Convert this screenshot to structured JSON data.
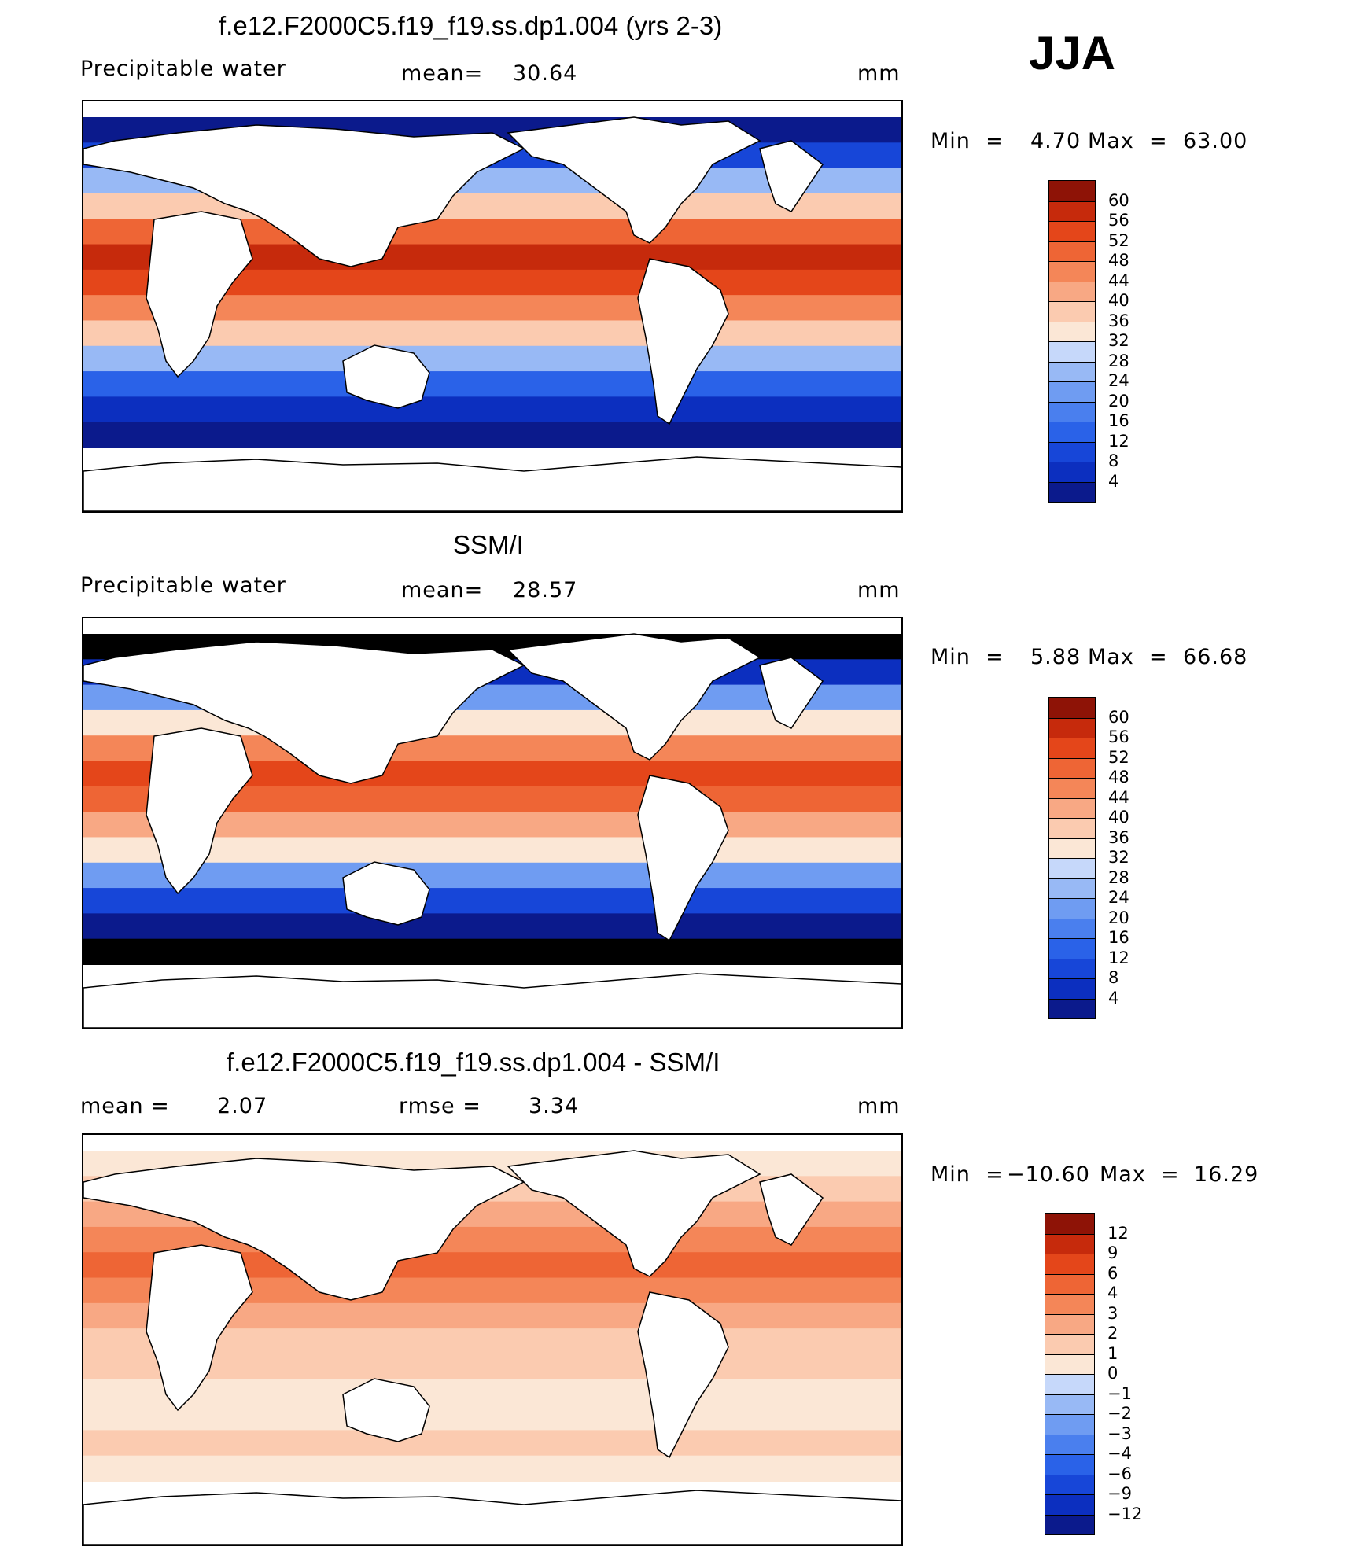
{
  "season": "JJA",
  "colors": {
    "precip_scale": [
      "#0b1a8c",
      "#0c2fbf",
      "#1746d8",
      "#2a62e8",
      "#4a7fee",
      "#6f9cf2",
      "#98b9f5",
      "#c6d8fa",
      "#fbe7d6",
      "#fbcbb0",
      "#f8a884",
      "#f48658",
      "#ee6535",
      "#e4461a",
      "#c62a0c",
      "#8e1306"
    ],
    "diff_scale": [
      "#0b1a8c",
      "#0c2fbf",
      "#1746d8",
      "#2a62e8",
      "#4a7fee",
      "#6f9cf2",
      "#98b9f5",
      "#c6d8fa",
      "#fbe7d6",
      "#fbcbb0",
      "#f8a884",
      "#f48658",
      "#ee6535",
      "#e4461a",
      "#c62a0c",
      "#8e1306"
    ]
  },
  "chart_data": [
    {
      "type": "heatmap",
      "title": "f.e12.F2000C5.f19_f19.ss.dp1.004 (yrs 2-3)",
      "field_label": "Precipitable water",
      "mean_label": "mean=",
      "mean_value": "30.64",
      "units": "mm",
      "min_label": "Min  =",
      "min_value": "4.70",
      "max_label": "Max  =",
      "max_value": "63.00",
      "colorbar_ticks": [
        "60",
        "56",
        "52",
        "48",
        "44",
        "40",
        "36",
        "32",
        "28",
        "24",
        "20",
        "16",
        "12",
        "8",
        "4"
      ],
      "values": {
        "min": 4.7,
        "max": 63.0,
        "mean": 30.64
      }
    },
    {
      "type": "heatmap",
      "title": "SSM/I",
      "field_label": "Precipitable water",
      "mean_label": "mean=",
      "mean_value": "28.57",
      "units": "mm",
      "min_label": "Min  =",
      "min_value": "5.88",
      "max_label": "Max  =",
      "max_value": "66.68",
      "colorbar_ticks": [
        "60",
        "56",
        "52",
        "48",
        "44",
        "40",
        "36",
        "32",
        "28",
        "24",
        "20",
        "16",
        "12",
        "8",
        "4"
      ],
      "values": {
        "min": 5.88,
        "max": 66.68,
        "mean": 28.57
      }
    },
    {
      "type": "heatmap",
      "title": "f.e12.F2000C5.f19_f19.ss.dp1.004 - SSM/I",
      "mean_label": "mean =",
      "mean_value": "2.07",
      "rmse_label": "rmse =",
      "rmse_value": "3.34",
      "units": "mm",
      "min_label": "Min  =",
      "min_value": "−10.60",
      "max_label": "Max  =",
      "max_value": "16.29",
      "colorbar_ticks": [
        "12",
        "9",
        "6",
        "4",
        "3",
        "2",
        "1",
        "0",
        "−1",
        "−2",
        "−3",
        "−4",
        "−6",
        "−9",
        "−12"
      ],
      "values": {
        "min": -10.6,
        "max": 16.29,
        "mean": 2.07,
        "rmse": 3.34
      }
    }
  ]
}
